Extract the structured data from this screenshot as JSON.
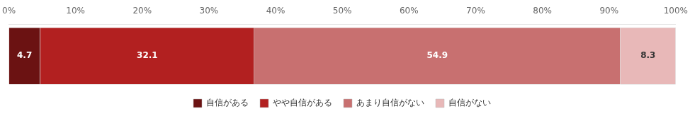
{
  "chart_data": {
    "type": "bar",
    "orientation": "horizontal",
    "stacked": true,
    "categories": [
      null
    ],
    "series": [
      {
        "name": "自信がある",
        "color": "#6b1212",
        "values": [
          4.7
        ]
      },
      {
        "name": "やや自信がある",
        "color": "#b22020",
        "values": [
          32.1
        ]
      },
      {
        "name": "あまり自信がない",
        "color": "#c87070",
        "values": [
          54.9
        ]
      },
      {
        "name": "自信がない",
        "color": "#e8b8b8",
        "values": [
          8.3
        ]
      }
    ],
    "xlim": [
      0,
      100
    ],
    "xticks": [
      {
        "value": 0,
        "label": "0%"
      },
      {
        "value": 10,
        "label": "10%"
      },
      {
        "value": 20,
        "label": "20%"
      },
      {
        "value": 30,
        "label": "30%"
      },
      {
        "value": 40,
        "label": "40%"
      },
      {
        "value": 50,
        "label": "50%"
      },
      {
        "value": 60,
        "label": "60%"
      },
      {
        "value": 70,
        "label": "70%"
      },
      {
        "value": 80,
        "label": "80%"
      },
      {
        "value": 90,
        "label": "90%"
      },
      {
        "value": 100,
        "label": "100%"
      }
    ],
    "data_labels": true,
    "legend": "bottom",
    "grid": false,
    "tick_labels": "x"
  }
}
